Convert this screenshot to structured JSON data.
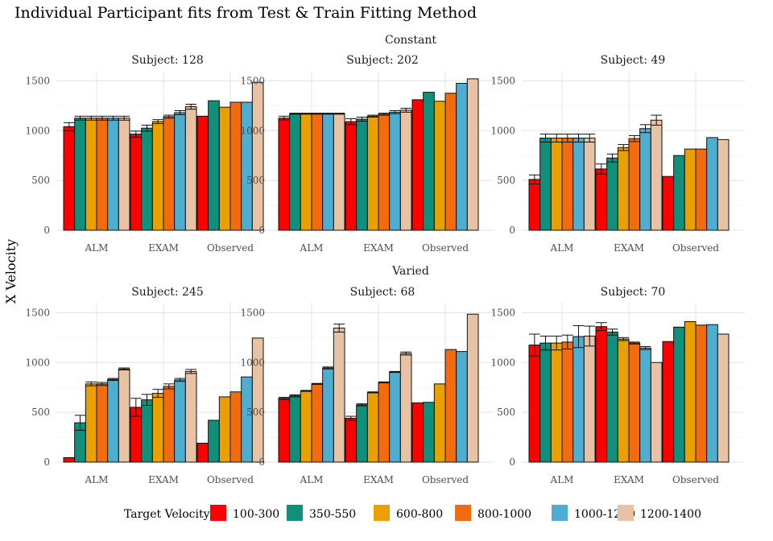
{
  "chart_data": {
    "type": "bar",
    "title": "Individual Participant fits from Test & Train Fitting Method",
    "ylabel": "X Velocity",
    "xlabel": "",
    "ylim": [
      0,
      1600
    ],
    "yticks": [
      0,
      500,
      1000,
      1500
    ],
    "grid": true,
    "legend": {
      "title": "Target Velocity",
      "position": "bottom",
      "entries": [
        "100-300",
        "350-550",
        "600-800",
        "800-1000",
        "1000-1200",
        "1200-1400"
      ],
      "colors": [
        "#ff0000",
        "#10907a",
        "#e9a000",
        "#f26b0f",
        "#4faed0",
        "#e7c2a4"
      ]
    },
    "categories": [
      "ALM",
      "EXAM",
      "Observed"
    ],
    "rows": [
      "Constant",
      "Varied"
    ],
    "panels": [
      {
        "row": "Constant",
        "subject": "Subject: 128",
        "values": {
          "ALM": [
            1040,
            1125,
            1125,
            1125,
            1125,
            1125
          ],
          "EXAM": [
            965,
            1025,
            1090,
            1140,
            1180,
            1240
          ],
          "Observed": [
            1145,
            1300,
            1235,
            1285,
            1285,
            1485
          ]
        },
        "errors": {
          "ALM": [
            40,
            20,
            20,
            20,
            20,
            20
          ],
          "EXAM": [
            30,
            30,
            20,
            15,
            20,
            25
          ],
          "Observed": [
            0,
            0,
            0,
            0,
            0,
            0
          ]
        }
      },
      {
        "row": "Constant",
        "subject": "Subject: 202",
        "values": {
          "ALM": [
            1125,
            1170,
            1170,
            1170,
            1170,
            1170
          ],
          "EXAM": [
            1090,
            1115,
            1145,
            1165,
            1185,
            1205
          ],
          "Observed": [
            1310,
            1385,
            1295,
            1375,
            1475,
            1520
          ]
        },
        "errors": {
          "ALM": [
            20,
            5,
            5,
            5,
            5,
            5
          ],
          "EXAM": [
            30,
            20,
            10,
            10,
            15,
            20
          ],
          "Observed": [
            0,
            0,
            0,
            0,
            0,
            0
          ]
        }
      },
      {
        "row": "Constant",
        "subject": "Subject: 49",
        "values": {
          "ALM": [
            510,
            925,
            925,
            925,
            925,
            925
          ],
          "EXAM": [
            615,
            725,
            830,
            920,
            1020,
            1105
          ],
          "Observed": [
            540,
            750,
            815,
            815,
            930,
            910
          ]
        },
        "errors": {
          "ALM": [
            45,
            40,
            40,
            40,
            40,
            40
          ],
          "EXAM": [
            50,
            40,
            30,
            30,
            40,
            50
          ],
          "Observed": [
            0,
            0,
            0,
            0,
            0,
            0
          ]
        }
      },
      {
        "row": "Varied",
        "subject": "Subject: 245",
        "values": {
          "ALM": [
            45,
            395,
            785,
            785,
            830,
            935
          ],
          "EXAM": [
            550,
            625,
            690,
            760,
            825,
            910
          ],
          "Observed": [
            190,
            420,
            655,
            705,
            855,
            1245
          ]
        },
        "errors": {
          "ALM": [
            0,
            75,
            20,
            15,
            10,
            10
          ],
          "EXAM": [
            90,
            55,
            40,
            25,
            15,
            20
          ],
          "Observed": [
            0,
            0,
            0,
            0,
            0,
            0
          ]
        }
      },
      {
        "row": "Varied",
        "subject": "Subject: 68",
        "values": {
          "ALM": [
            640,
            665,
            715,
            785,
            945,
            1345
          ],
          "EXAM": [
            440,
            575,
            700,
            800,
            905,
            1090
          ],
          "Observed": [
            595,
            600,
            785,
            1130,
            1110,
            1485
          ]
        },
        "errors": {
          "ALM": [
            10,
            10,
            5,
            5,
            10,
            40
          ],
          "EXAM": [
            20,
            10,
            5,
            5,
            5,
            15
          ],
          "Observed": [
            0,
            0,
            0,
            0,
            0,
            0
          ]
        }
      },
      {
        "row": "Varied",
        "subject": "Subject: 70",
        "values": {
          "ALM": [
            1175,
            1195,
            1195,
            1205,
            1260,
            1265
          ],
          "EXAM": [
            1360,
            1305,
            1235,
            1195,
            1145,
            1000
          ],
          "Observed": [
            1210,
            1355,
            1410,
            1375,
            1380,
            1285
          ]
        },
        "errors": {
          "ALM": [
            110,
            70,
            70,
            70,
            110,
            100
          ],
          "EXAM": [
            40,
            30,
            15,
            10,
            15,
            0
          ],
          "Observed": [
            0,
            0,
            0,
            0,
            0,
            0
          ]
        }
      }
    ]
  }
}
